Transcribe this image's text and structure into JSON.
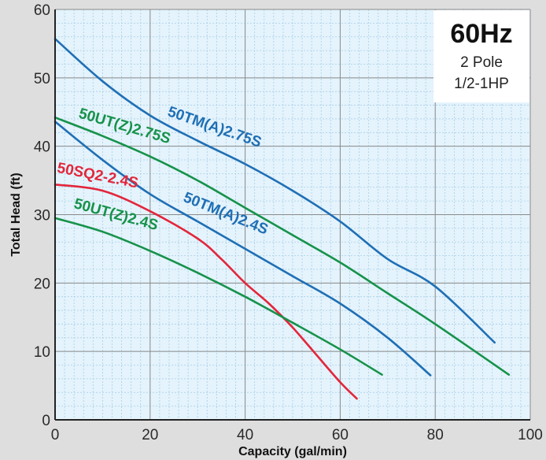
{
  "chart_data": {
    "type": "line",
    "title": "",
    "xlabel": "Capacity (gal/min)",
    "ylabel": "Total Head (ft)",
    "xlim": [
      0,
      100
    ],
    "ylim": [
      0,
      60
    ],
    "x_ticks": [
      0,
      20,
      40,
      60,
      80,
      100
    ],
    "y_ticks": [
      0,
      10,
      20,
      30,
      40,
      50,
      60
    ],
    "grid": true,
    "info_box": {
      "title": "60Hz",
      "line1": "2  Pole",
      "line2": "1/2-1HP"
    },
    "colors": {
      "blue": "#1f6fb5",
      "green": "#16924a",
      "red": "#e3263b",
      "plot_bg": "#e4f3fc",
      "grid": "#a9cfe6",
      "major_grid": "#8a8a8a"
    },
    "series": [
      {
        "name": "50TM(A)2.75S",
        "color": "#1f6fb5",
        "points": [
          [
            0,
            55.7
          ],
          [
            10,
            49.5
          ],
          [
            20,
            44.5
          ],
          [
            30,
            40.8
          ],
          [
            40,
            37.4
          ],
          [
            50,
            33.5
          ],
          [
            60,
            29
          ],
          [
            70,
            23.5
          ],
          [
            80,
            19.5
          ],
          [
            92.5,
            11.3
          ]
        ]
      },
      {
        "name": "50UT(Z)2.75S",
        "color": "#16924a",
        "points": [
          [
            0,
            44.2
          ],
          [
            10,
            41.5
          ],
          [
            20,
            38.5
          ],
          [
            30,
            35
          ],
          [
            40,
            31
          ],
          [
            50,
            27
          ],
          [
            60,
            23
          ],
          [
            70,
            18.5
          ],
          [
            80,
            14
          ],
          [
            95.5,
            6.6
          ]
        ]
      },
      {
        "name": "50TM(A)2.4S",
        "color": "#1f6fb5",
        "points": [
          [
            0,
            43.6
          ],
          [
            10,
            38
          ],
          [
            20,
            33
          ],
          [
            30,
            29
          ],
          [
            40,
            25
          ],
          [
            50,
            21
          ],
          [
            60,
            17
          ],
          [
            70,
            12
          ],
          [
            79,
            6.5
          ]
        ]
      },
      {
        "name": "50SQ2-2.4S",
        "color": "#e3263b",
        "points": [
          [
            0,
            34.4
          ],
          [
            10,
            33.5
          ],
          [
            20,
            30.5
          ],
          [
            30,
            26.5
          ],
          [
            35,
            23.5
          ],
          [
            40,
            20
          ],
          [
            45,
            17
          ],
          [
            50,
            13.5
          ],
          [
            55,
            9.5
          ],
          [
            60,
            5.5
          ],
          [
            63.5,
            3.1
          ]
        ]
      },
      {
        "name": "50UT(Z)2.4S",
        "color": "#16924a",
        "points": [
          [
            0,
            29.5
          ],
          [
            10,
            27.5
          ],
          [
            20,
            24.7
          ],
          [
            30,
            21.5
          ],
          [
            40,
            18
          ],
          [
            50,
            14.2
          ],
          [
            60,
            10.3
          ],
          [
            68.8,
            6.6
          ]
        ]
      }
    ],
    "labels": [
      {
        "series": "50TM(A)2.75S",
        "x": 23.5,
        "y": 44.5,
        "angle": 19
      },
      {
        "series": "50UT(Z)2.75S",
        "x": 4.8,
        "y": 44.2,
        "angle": 16
      },
      {
        "series": "50TM(A)2.4S",
        "x": 26.8,
        "y": 32.0,
        "angle": 22
      },
      {
        "series": "50SQ2-2.4S",
        "x": 0.3,
        "y": 36.2,
        "angle": 11
      },
      {
        "series": "50UT(Z)2.4S",
        "x": 3.8,
        "y": 31.0,
        "angle": 15
      }
    ]
  }
}
